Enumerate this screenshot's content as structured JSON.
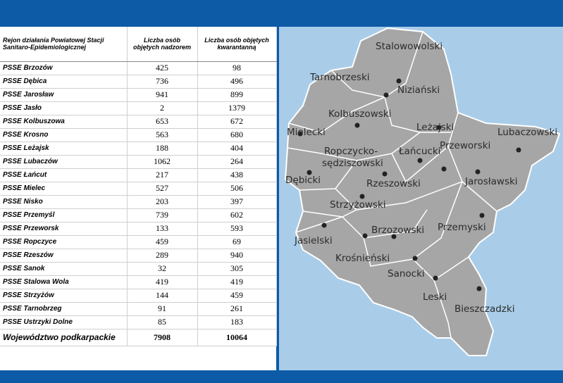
{
  "table": {
    "header": [
      "Rejon działania Powiatowej Stacji Sanitaro-Epidemiologicznej",
      "Liczba osób objętych nadzorem",
      "Liczba osób objętych kwarantanną"
    ],
    "rows": [
      [
        "PSSE Brzozów",
        425,
        98
      ],
      [
        "PSSE Dębica",
        736,
        496
      ],
      [
        "PSSE Jarosław",
        941,
        899
      ],
      [
        "PSSE Jasło",
        2,
        1379
      ],
      [
        "PSSE Kolbuszowa",
        653,
        672
      ],
      [
        "PSSE Krosno",
        563,
        680
      ],
      [
        "PSSE Leżajsk",
        188,
        404
      ],
      [
        "PSSE Lubaczów",
        1062,
        264
      ],
      [
        "PSSE Łańcut",
        217,
        438
      ],
      [
        "PSSE Mielec",
        527,
        506
      ],
      [
        "PSSE Nisko",
        203,
        397
      ],
      [
        "PSSE Przemyśl",
        739,
        602
      ],
      [
        "PSSE Przeworsk",
        133,
        593
      ],
      [
        "PSSE Ropczyce",
        459,
        69
      ],
      [
        "PSSE Rzeszów",
        289,
        940
      ],
      [
        "PSSE Sanok",
        32,
        305
      ],
      [
        "PSSE Stalowa Wola",
        419,
        419
      ],
      [
        "PSSE Strzyżów",
        144,
        459
      ],
      [
        "PSSE Tarnobrzeg",
        91,
        261
      ],
      [
        "PSSE Ustrzyki Dolne",
        85,
        183
      ]
    ],
    "total": [
      "Województwo podkarpackie",
      7908,
      10064
    ]
  },
  "map": {
    "labels": [
      "Stalowowolski",
      "Tarnobrzeski",
      "Niziański",
      "Kolbuszowski",
      "Mielecki",
      "Leżajski",
      "Lubaczowski",
      "Przeworski",
      "Ropczycko-",
      "sędziszowski",
      "Łańcucki",
      "Dębicki",
      "Jarosławski",
      "Rzeszowski",
      "Strzyżowski",
      "Przemyski",
      "Brzozowski",
      "Jasielski",
      "Krośnieński",
      "Sanocki",
      "Leski",
      "Bieszczadzki"
    ]
  }
}
